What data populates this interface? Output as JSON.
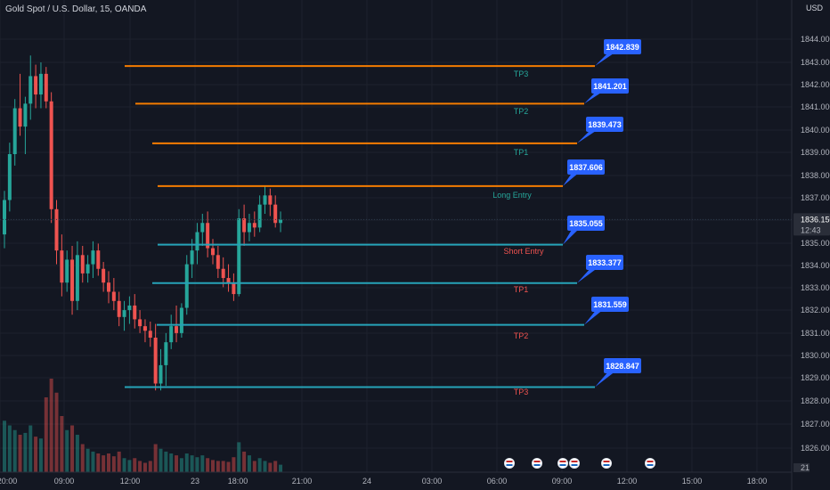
{
  "header": {
    "symbol_title": "Gold Spot / U.S. Dollar, 15, OANDA",
    "currency": "USD"
  },
  "colors": {
    "background": "#131722",
    "grid": "#1e222d",
    "up": "#26a69a",
    "down": "#ef5350",
    "long_line": "#f57c00",
    "short_line": "#26a3b8",
    "callout_bg": "#2962ff",
    "long_label": "#26a69a",
    "short_label": "#ef5350"
  },
  "chart_data": {
    "type": "candlestick",
    "title": "Gold Spot / U.S. Dollar, 15, OANDA",
    "ylim": [
      1825.0,
      1845.0
    ],
    "y_ticks": [
      "1826.000",
      "1827.000",
      "1828.000",
      "1829.000",
      "1830.000",
      "1831.000",
      "1832.000",
      "1833.000",
      "1834.000",
      "1835.000",
      "1836.000",
      "1837.000",
      "1838.000",
      "1839.000",
      "1840.000",
      "1841.000",
      "1842.000",
      "1843.000",
      "1844.000"
    ],
    "x_ticks": [
      {
        "label": "20:00",
        "time": "20:00"
      },
      {
        "label": "09:00",
        "time": "09:00"
      },
      {
        "label": "12:00",
        "time": "12:00"
      },
      {
        "label": "23",
        "time": "day 23"
      },
      {
        "label": "18:00",
        "time": "18:00"
      },
      {
        "label": "21:00",
        "time": "21:00"
      },
      {
        "label": "24",
        "time": "day 24"
      },
      {
        "label": "03:00",
        "time": "03:00"
      },
      {
        "label": "06:00",
        "time": "06:00"
      },
      {
        "label": "09:00",
        "time": "09:00"
      },
      {
        "label": "12:00",
        "time": "12:00"
      },
      {
        "label": "15:00",
        "time": "15:00"
      },
      {
        "label": "18:00",
        "time": "18:00"
      }
    ],
    "current_price": {
      "value": "1836.150",
      "countdown": "12:43"
    },
    "volume_axis_label": "21",
    "levels": [
      {
        "side": "long",
        "name": "TP3",
        "price": 1842.839,
        "label": "1842.839"
      },
      {
        "side": "long",
        "name": "TP2",
        "price": 1841.201,
        "label": "1841.201"
      },
      {
        "side": "long",
        "name": "TP1",
        "price": 1839.473,
        "label": "1839.473"
      },
      {
        "side": "long",
        "name": "Long Entry",
        "price": 1837.606,
        "label": "1837.606"
      },
      {
        "side": "short",
        "name": "Short Entry",
        "price": 1835.055,
        "label": "1835.055"
      },
      {
        "side": "short",
        "name": "TP1",
        "price": 1833.377,
        "label": "1833.377"
      },
      {
        "side": "short",
        "name": "TP2",
        "price": 1831.559,
        "label": "1831.559"
      },
      {
        "side": "short",
        "name": "TP3",
        "price": 1828.847,
        "label": "1828.847"
      }
    ],
    "candles": [
      {
        "o": 1835.5,
        "h": 1837.4,
        "l": 1834.9,
        "c": 1837.0,
        "v": 0.55
      },
      {
        "o": 1837.0,
        "h": 1839.5,
        "l": 1836.5,
        "c": 1839.0,
        "v": 0.5
      },
      {
        "o": 1839.0,
        "h": 1841.4,
        "l": 1838.5,
        "c": 1841.0,
        "v": 0.45
      },
      {
        "o": 1841.0,
        "h": 1842.5,
        "l": 1839.8,
        "c": 1840.2,
        "v": 0.4
      },
      {
        "o": 1840.2,
        "h": 1841.5,
        "l": 1839.0,
        "c": 1841.2,
        "v": 0.42
      },
      {
        "o": 1841.2,
        "h": 1843.3,
        "l": 1840.5,
        "c": 1842.4,
        "v": 0.5
      },
      {
        "o": 1842.4,
        "h": 1842.9,
        "l": 1841.0,
        "c": 1841.6,
        "v": 0.38
      },
      {
        "o": 1841.6,
        "h": 1843.0,
        "l": 1841.0,
        "c": 1842.5,
        "v": 0.36
      },
      {
        "o": 1842.5,
        "h": 1842.8,
        "l": 1841.0,
        "c": 1841.3,
        "v": 0.8
      },
      {
        "o": 1841.3,
        "h": 1841.7,
        "l": 1836.0,
        "c": 1836.6,
        "v": 1.0
      },
      {
        "o": 1836.6,
        "h": 1837.0,
        "l": 1834.2,
        "c": 1834.8,
        "v": 0.85
      },
      {
        "o": 1834.8,
        "h": 1835.5,
        "l": 1832.8,
        "c": 1833.4,
        "v": 0.6
      },
      {
        "o": 1833.4,
        "h": 1834.8,
        "l": 1833.0,
        "c": 1834.4,
        "v": 0.45
      },
      {
        "o": 1834.4,
        "h": 1835.0,
        "l": 1832.0,
        "c": 1832.6,
        "v": 0.5
      },
      {
        "o": 1832.6,
        "h": 1835.2,
        "l": 1832.2,
        "c": 1834.6,
        "v": 0.4
      },
      {
        "o": 1834.6,
        "h": 1835.0,
        "l": 1833.4,
        "c": 1833.8,
        "v": 0.3
      },
      {
        "o": 1833.8,
        "h": 1834.6,
        "l": 1833.4,
        "c": 1834.2,
        "v": 0.25
      },
      {
        "o": 1834.2,
        "h": 1835.2,
        "l": 1833.6,
        "c": 1834.8,
        "v": 0.22
      },
      {
        "o": 1834.8,
        "h": 1835.1,
        "l": 1833.7,
        "c": 1834.0,
        "v": 0.2
      },
      {
        "o": 1834.0,
        "h": 1834.3,
        "l": 1833.0,
        "c": 1833.4,
        "v": 0.18
      },
      {
        "o": 1833.4,
        "h": 1833.9,
        "l": 1832.5,
        "c": 1833.0,
        "v": 0.2
      },
      {
        "o": 1833.0,
        "h": 1833.6,
        "l": 1832.2,
        "c": 1832.6,
        "v": 0.17
      },
      {
        "o": 1832.6,
        "h": 1833.0,
        "l": 1831.5,
        "c": 1831.9,
        "v": 0.22
      },
      {
        "o": 1831.9,
        "h": 1832.6,
        "l": 1831.3,
        "c": 1832.2,
        "v": 0.15
      },
      {
        "o": 1832.2,
        "h": 1832.8,
        "l": 1831.6,
        "c": 1832.4,
        "v": 0.13
      },
      {
        "o": 1832.4,
        "h": 1832.9,
        "l": 1831.4,
        "c": 1831.8,
        "v": 0.15
      },
      {
        "o": 1831.8,
        "h": 1832.2,
        "l": 1831.2,
        "c": 1831.5,
        "v": 0.12
      },
      {
        "o": 1831.5,
        "h": 1831.8,
        "l": 1830.8,
        "c": 1831.3,
        "v": 0.1
      },
      {
        "o": 1831.3,
        "h": 1831.7,
        "l": 1830.6,
        "c": 1831.0,
        "v": 0.12
      },
      {
        "o": 1831.0,
        "h": 1831.6,
        "l": 1828.7,
        "c": 1829.0,
        "v": 0.3
      },
      {
        "o": 1829.0,
        "h": 1830.5,
        "l": 1828.7,
        "c": 1829.8,
        "v": 0.25
      },
      {
        "o": 1829.8,
        "h": 1831.2,
        "l": 1828.9,
        "c": 1830.8,
        "v": 0.22
      },
      {
        "o": 1830.8,
        "h": 1832.0,
        "l": 1830.5,
        "c": 1831.5,
        "v": 0.2
      },
      {
        "o": 1831.5,
        "h": 1832.4,
        "l": 1830.8,
        "c": 1831.2,
        "v": 0.18
      },
      {
        "o": 1831.2,
        "h": 1832.5,
        "l": 1831.0,
        "c": 1832.3,
        "v": 0.15
      },
      {
        "o": 1832.3,
        "h": 1834.6,
        "l": 1832.0,
        "c": 1834.2,
        "v": 0.2
      },
      {
        "o": 1834.2,
        "h": 1835.3,
        "l": 1833.6,
        "c": 1834.8,
        "v": 0.18
      },
      {
        "o": 1834.8,
        "h": 1836.0,
        "l": 1834.2,
        "c": 1835.6,
        "v": 0.16
      },
      {
        "o": 1835.6,
        "h": 1836.4,
        "l": 1835.0,
        "c": 1836.0,
        "v": 0.18
      },
      {
        "o": 1836.0,
        "h": 1836.5,
        "l": 1834.5,
        "c": 1834.9,
        "v": 0.15
      },
      {
        "o": 1834.9,
        "h": 1835.3,
        "l": 1834.2,
        "c": 1834.6,
        "v": 0.13
      },
      {
        "o": 1834.6,
        "h": 1835.0,
        "l": 1833.6,
        "c": 1834.0,
        "v": 0.12
      },
      {
        "o": 1834.0,
        "h": 1834.5,
        "l": 1833.2,
        "c": 1833.6,
        "v": 0.12
      },
      {
        "o": 1833.6,
        "h": 1834.2,
        "l": 1833.0,
        "c": 1833.4,
        "v": 0.11
      },
      {
        "o": 1833.4,
        "h": 1833.8,
        "l": 1832.6,
        "c": 1832.9,
        "v": 0.16
      },
      {
        "o": 1832.9,
        "h": 1836.6,
        "l": 1832.8,
        "c": 1836.2,
        "v": 0.32
      },
      {
        "o": 1836.2,
        "h": 1836.8,
        "l": 1835.0,
        "c": 1835.6,
        "v": 0.22
      },
      {
        "o": 1835.6,
        "h": 1836.4,
        "l": 1835.2,
        "c": 1836.0,
        "v": 0.18
      },
      {
        "o": 1836.0,
        "h": 1836.5,
        "l": 1835.4,
        "c": 1835.8,
        "v": 0.12
      },
      {
        "o": 1835.8,
        "h": 1837.2,
        "l": 1835.6,
        "c": 1836.8,
        "v": 0.15
      },
      {
        "o": 1836.8,
        "h": 1837.6,
        "l": 1836.4,
        "c": 1837.2,
        "v": 0.12
      },
      {
        "o": 1837.2,
        "h": 1837.5,
        "l": 1836.3,
        "c": 1836.8,
        "v": 0.1
      },
      {
        "o": 1836.8,
        "h": 1837.2,
        "l": 1835.8,
        "c": 1836.0,
        "v": 0.12
      },
      {
        "o": 1836.0,
        "h": 1836.5,
        "l": 1835.6,
        "c": 1836.15,
        "v": 0.08
      }
    ],
    "currency_event_markers": 6
  }
}
